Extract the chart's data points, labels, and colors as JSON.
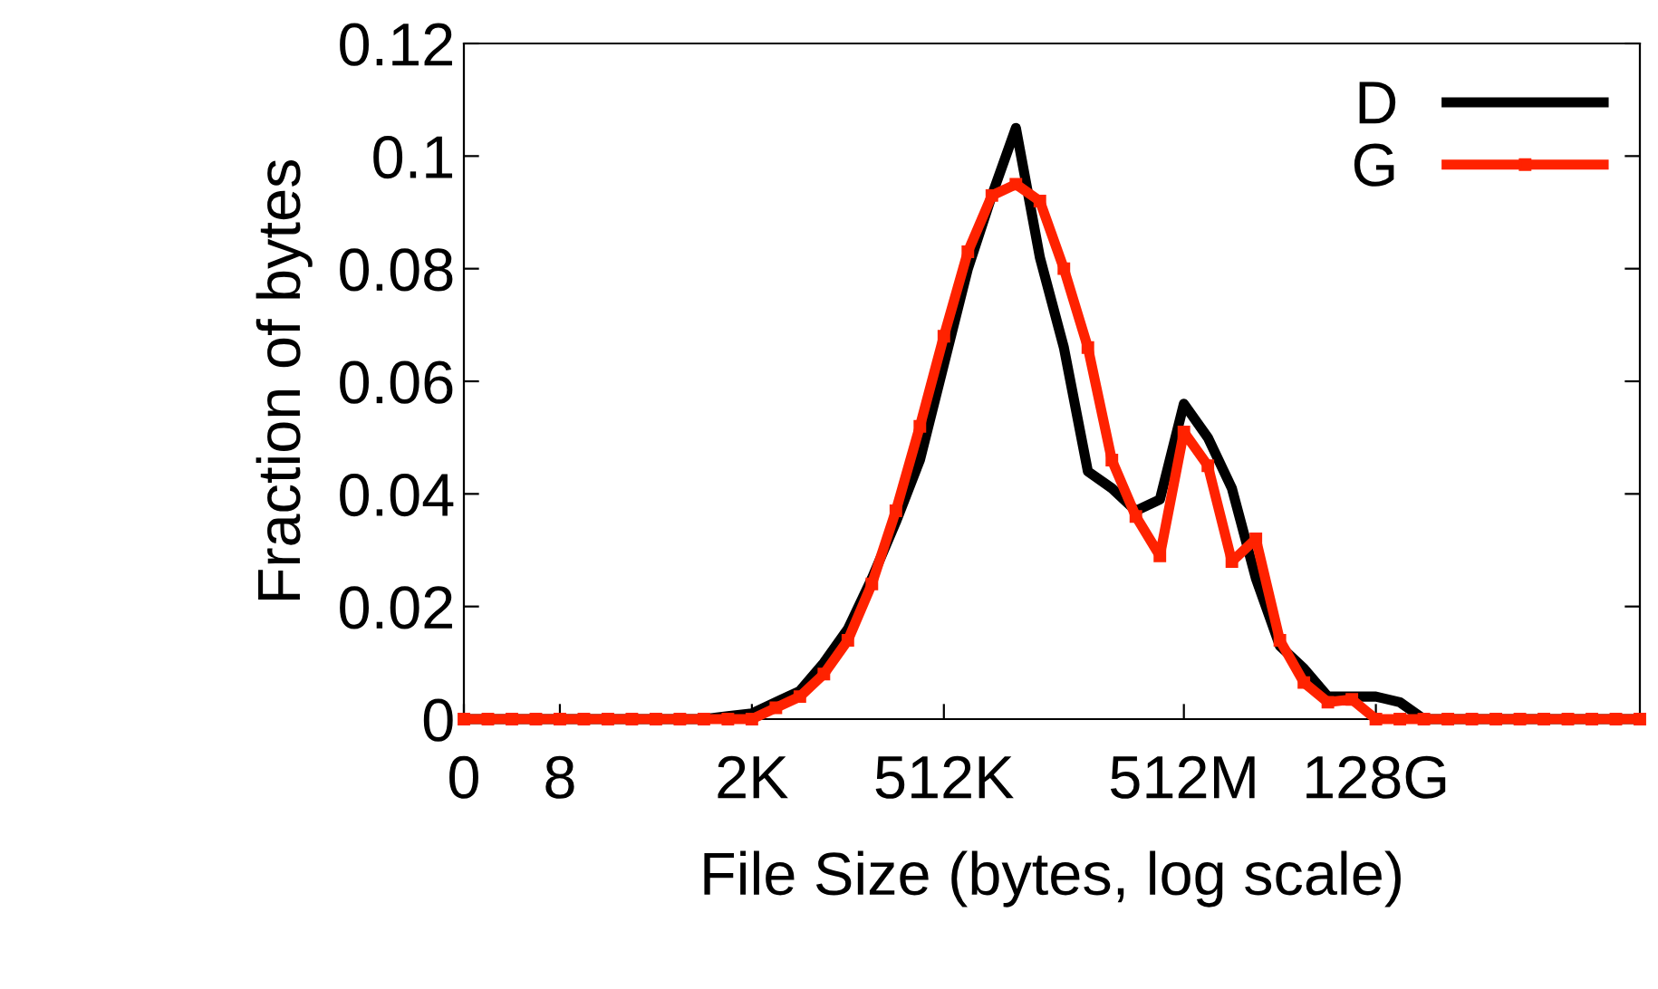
{
  "chart_data": {
    "type": "line",
    "xlabel": "File Size (bytes, log scale)",
    "ylabel": "Fraction of bytes",
    "categories": [
      "0",
      null,
      null,
      null,
      "8",
      null,
      null,
      null,
      null,
      null,
      null,
      null,
      "2K",
      null,
      null,
      null,
      null,
      null,
      null,
      null,
      "512K",
      null,
      null,
      null,
      null,
      null,
      null,
      null,
      null,
      null,
      "512M",
      null,
      null,
      null,
      null,
      null,
      null,
      null,
      "128G",
      null,
      null,
      null,
      null,
      null,
      null,
      null,
      null,
      null,
      null,
      null
    ],
    "series": [
      {
        "name": "D",
        "color": "#000000",
        "marker": "none",
        "values": [
          0,
          0,
          0,
          0,
          0,
          0,
          0,
          0,
          0,
          0,
          0,
          0.0005,
          0.001,
          0.003,
          0.005,
          0.01,
          0.016,
          0.025,
          0.035,
          0.046,
          0.063,
          0.08,
          0.093,
          0.105,
          0.082,
          0.066,
          0.044,
          0.041,
          0.037,
          0.039,
          0.056,
          0.05,
          0.041,
          0.025,
          0.013,
          0.009,
          0.004,
          0.004,
          0.004,
          0.003,
          0,
          0,
          0,
          0,
          0,
          0,
          0,
          0,
          0,
          0
        ]
      },
      {
        "name": "G",
        "color": "#ff2200",
        "marker": "square",
        "values": [
          0,
          0,
          0,
          0,
          0,
          0,
          0,
          0,
          0,
          0,
          0,
          0,
          0,
          0.002,
          0.004,
          0.008,
          0.014,
          0.024,
          0.037,
          0.052,
          0.068,
          0.083,
          0.093,
          0.095,
          0.092,
          0.08,
          0.066,
          0.046,
          0.036,
          0.029,
          0.051,
          0.045,
          0.028,
          0.032,
          0.014,
          0.0065,
          0.003,
          0.0035,
          0,
          0,
          0,
          0,
          0,
          0,
          0,
          0,
          0,
          0,
          0,
          0
        ]
      }
    ],
    "ylim": [
      0,
      0.12
    ],
    "yticks": [
      0,
      0.02,
      0.04,
      0.06,
      0.08,
      {
        "value": 0.1,
        "label": "0.1"
      },
      0.12
    ],
    "legend": "top right",
    "grid": false,
    "line_style": "solid"
  }
}
